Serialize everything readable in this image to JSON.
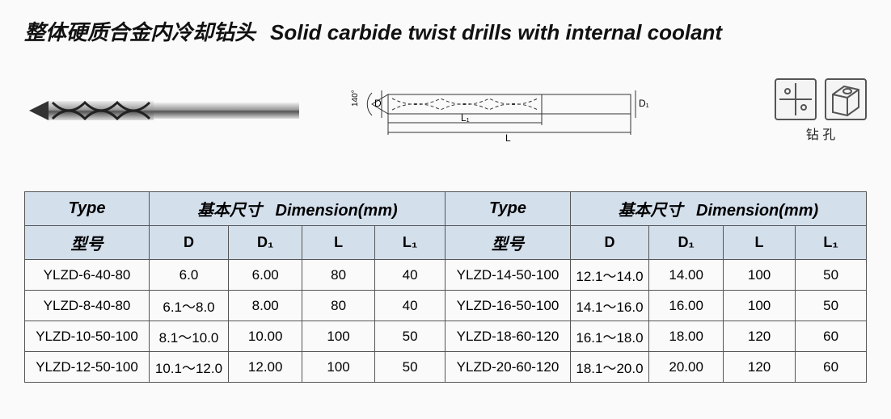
{
  "title": {
    "cn": "整体硬质合金内冷却钻头",
    "en": "Solid carbide twist drills with internal coolant"
  },
  "diagram": {
    "angle_label": "140°",
    "dim_D": "D",
    "dim_D1": "D₁",
    "dim_L": "L",
    "dim_L1": "L₁",
    "tip_style": "twist-drill",
    "stroke": "#333333",
    "dash": "4 3"
  },
  "icons": {
    "caption": "钻 孔",
    "left": "crosshair-square-icon",
    "right": "hole-block-icon"
  },
  "table": {
    "header_bg": "#d4dfec",
    "border_color": "#555555",
    "type_label": "Type",
    "type_label_cn": "型号",
    "dim_label_cn": "基本尺寸",
    "dim_label_en": "Dimension(mm)",
    "columns": [
      "D",
      "D₁",
      "L",
      "L₁"
    ],
    "left_rows": [
      {
        "type": "YLZD-6-40-80",
        "D": "6.0",
        "D1": "6.00",
        "L": "80",
        "L1": "40"
      },
      {
        "type": "YLZD-8-40-80",
        "D": "6.1～8.0",
        "D1": "8.00",
        "L": "80",
        "L1": "40"
      },
      {
        "type": "YLZD-10-50-100",
        "D": "8.1～10.0",
        "D1": "10.00",
        "L": "100",
        "L1": "50"
      },
      {
        "type": "YLZD-12-50-100",
        "D": "10.1～12.0",
        "D1": "12.00",
        "L": "100",
        "L1": "50"
      }
    ],
    "right_rows": [
      {
        "type": "YLZD-14-50-100",
        "D": "12.1～14.0",
        "D1": "14.00",
        "L": "100",
        "L1": "50"
      },
      {
        "type": "YLZD-16-50-100",
        "D": "14.1～16.0",
        "D1": "16.00",
        "L": "100",
        "L1": "50"
      },
      {
        "type": "YLZD-18-60-120",
        "D": "16.1～18.0",
        "D1": "18.00",
        "L": "120",
        "L1": "60"
      },
      {
        "type": "YLZD-20-60-120",
        "D": "18.1～20.0",
        "D1": "20.00",
        "L": "120",
        "L1": "60"
      }
    ]
  }
}
